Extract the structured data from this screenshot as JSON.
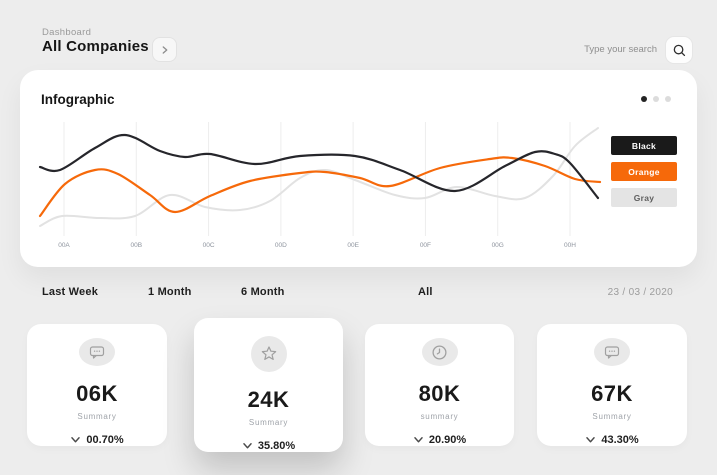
{
  "header": {
    "breadcrumb": "Dashboard",
    "title": "All Companies",
    "search_placeholder": "Type your search"
  },
  "infographic": {
    "title": "Infographic",
    "pagination": {
      "count": 3,
      "active_index": 0
    },
    "legend": [
      {
        "label": "Black",
        "bg": "#1A1A1A",
        "color": "#FFFFFF"
      },
      {
        "label": "Orange",
        "bg": "#F6690A",
        "color": "#FFFFFF"
      },
      {
        "label": "Gray",
        "bg": "#E4E4E4",
        "color": "#5F5F5F"
      }
    ]
  },
  "chart_data": {
    "type": "line",
    "title": "Infographic",
    "x_labels": [
      "00A",
      "00B",
      "00C",
      "00D",
      "00E",
      "00F",
      "00G",
      "00H"
    ],
    "grid": true,
    "legend_position": "right",
    "axis": {
      "y_visible": false,
      "x_tick_color": "#8E949E",
      "grid_color": "#EDEDED"
    },
    "series": [
      {
        "name": "Gray",
        "color": "#E2E2E2",
        "width": 2,
        "points": [
          [
            10,
            108
          ],
          [
            32,
            98
          ],
          [
            70,
            100
          ],
          [
            105,
            98
          ],
          [
            140,
            77
          ],
          [
            175,
            89
          ],
          [
            210,
            92
          ],
          [
            240,
            83
          ],
          [
            270,
            60
          ],
          [
            295,
            52
          ],
          [
            325,
            62
          ],
          [
            365,
            77
          ],
          [
            395,
            80
          ],
          [
            427,
            69
          ],
          [
            465,
            78
          ],
          [
            495,
            80
          ],
          [
            523,
            58
          ],
          [
            545,
            28
          ],
          [
            568,
            10
          ]
        ]
      },
      {
        "name": "Orange",
        "color": "#F6690A",
        "width": 2.2,
        "points": [
          [
            10,
            98
          ],
          [
            35,
            66
          ],
          [
            65,
            52
          ],
          [
            88,
            56
          ],
          [
            120,
            77
          ],
          [
            145,
            94
          ],
          [
            180,
            78
          ],
          [
            220,
            63
          ],
          [
            270,
            55
          ],
          [
            295,
            54
          ],
          [
            330,
            60
          ],
          [
            360,
            68
          ],
          [
            410,
            50
          ],
          [
            460,
            41
          ],
          [
            482,
            40
          ],
          [
            515,
            48
          ],
          [
            545,
            61
          ],
          [
            570,
            64
          ]
        ]
      },
      {
        "name": "Black",
        "color": "#26262B",
        "width": 2.2,
        "points": [
          [
            10,
            49
          ],
          [
            30,
            52
          ],
          [
            65,
            30
          ],
          [
            95,
            17
          ],
          [
            130,
            33
          ],
          [
            155,
            39
          ],
          [
            180,
            36
          ],
          [
            225,
            46
          ],
          [
            270,
            38
          ],
          [
            325,
            38
          ],
          [
            370,
            52
          ],
          [
            425,
            73
          ],
          [
            475,
            48
          ],
          [
            505,
            34
          ],
          [
            525,
            36
          ],
          [
            540,
            45
          ],
          [
            568,
            80
          ]
        ]
      }
    ]
  },
  "filters": {
    "items": [
      "Last Week",
      "1 Month",
      "6 Month",
      "All"
    ],
    "date": "23 / 03 / 2020"
  },
  "stats": [
    {
      "icon": "message-icon",
      "value": "06K",
      "label": "Summary",
      "delta": "00.70%"
    },
    {
      "icon": "star-icon",
      "value": "24K",
      "label": "Summary",
      "delta": "35.80%"
    },
    {
      "icon": "clock-icon",
      "value": "80K",
      "label": "summary",
      "delta": "20.90%"
    },
    {
      "icon": "message-icon",
      "value": "67K",
      "label": "Summary",
      "delta": "43.30%"
    }
  ]
}
